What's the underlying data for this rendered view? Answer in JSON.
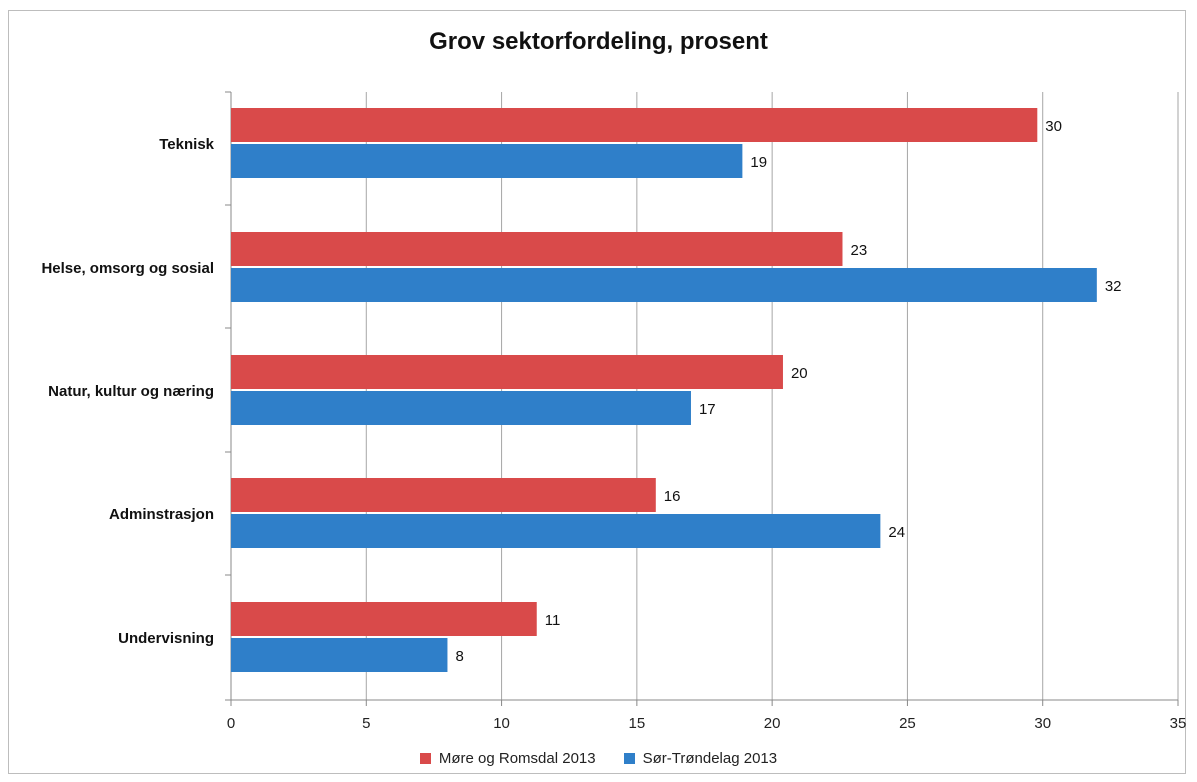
{
  "chart_data": {
    "type": "bar",
    "orientation": "horizontal",
    "title": "Grov sektorfordeling, prosent",
    "categories": [
      "Teknisk",
      "Helse, omsorg og sosial",
      "Natur, kultur og næring",
      "Adminstrasjon",
      "Undervisning"
    ],
    "series": [
      {
        "name": "Møre og Romsdal 2013",
        "color": "#d94a4a",
        "values": [
          30,
          23,
          20,
          16,
          11
        ],
        "bar_extent": [
          29.8,
          22.6,
          20.4,
          15.7,
          11.3
        ]
      },
      {
        "name": "Sør-Trøndelag 2013",
        "color": "#2f7fc9",
        "values": [
          19,
          32,
          17,
          24,
          8
        ],
        "bar_extent": [
          18.9,
          32,
          17,
          24,
          8
        ]
      }
    ],
    "xlim": [
      0,
      35
    ],
    "xticks": [
      0,
      5,
      10,
      15,
      20,
      25,
      30,
      35
    ],
    "grid": true,
    "legend_position": "bottom"
  }
}
